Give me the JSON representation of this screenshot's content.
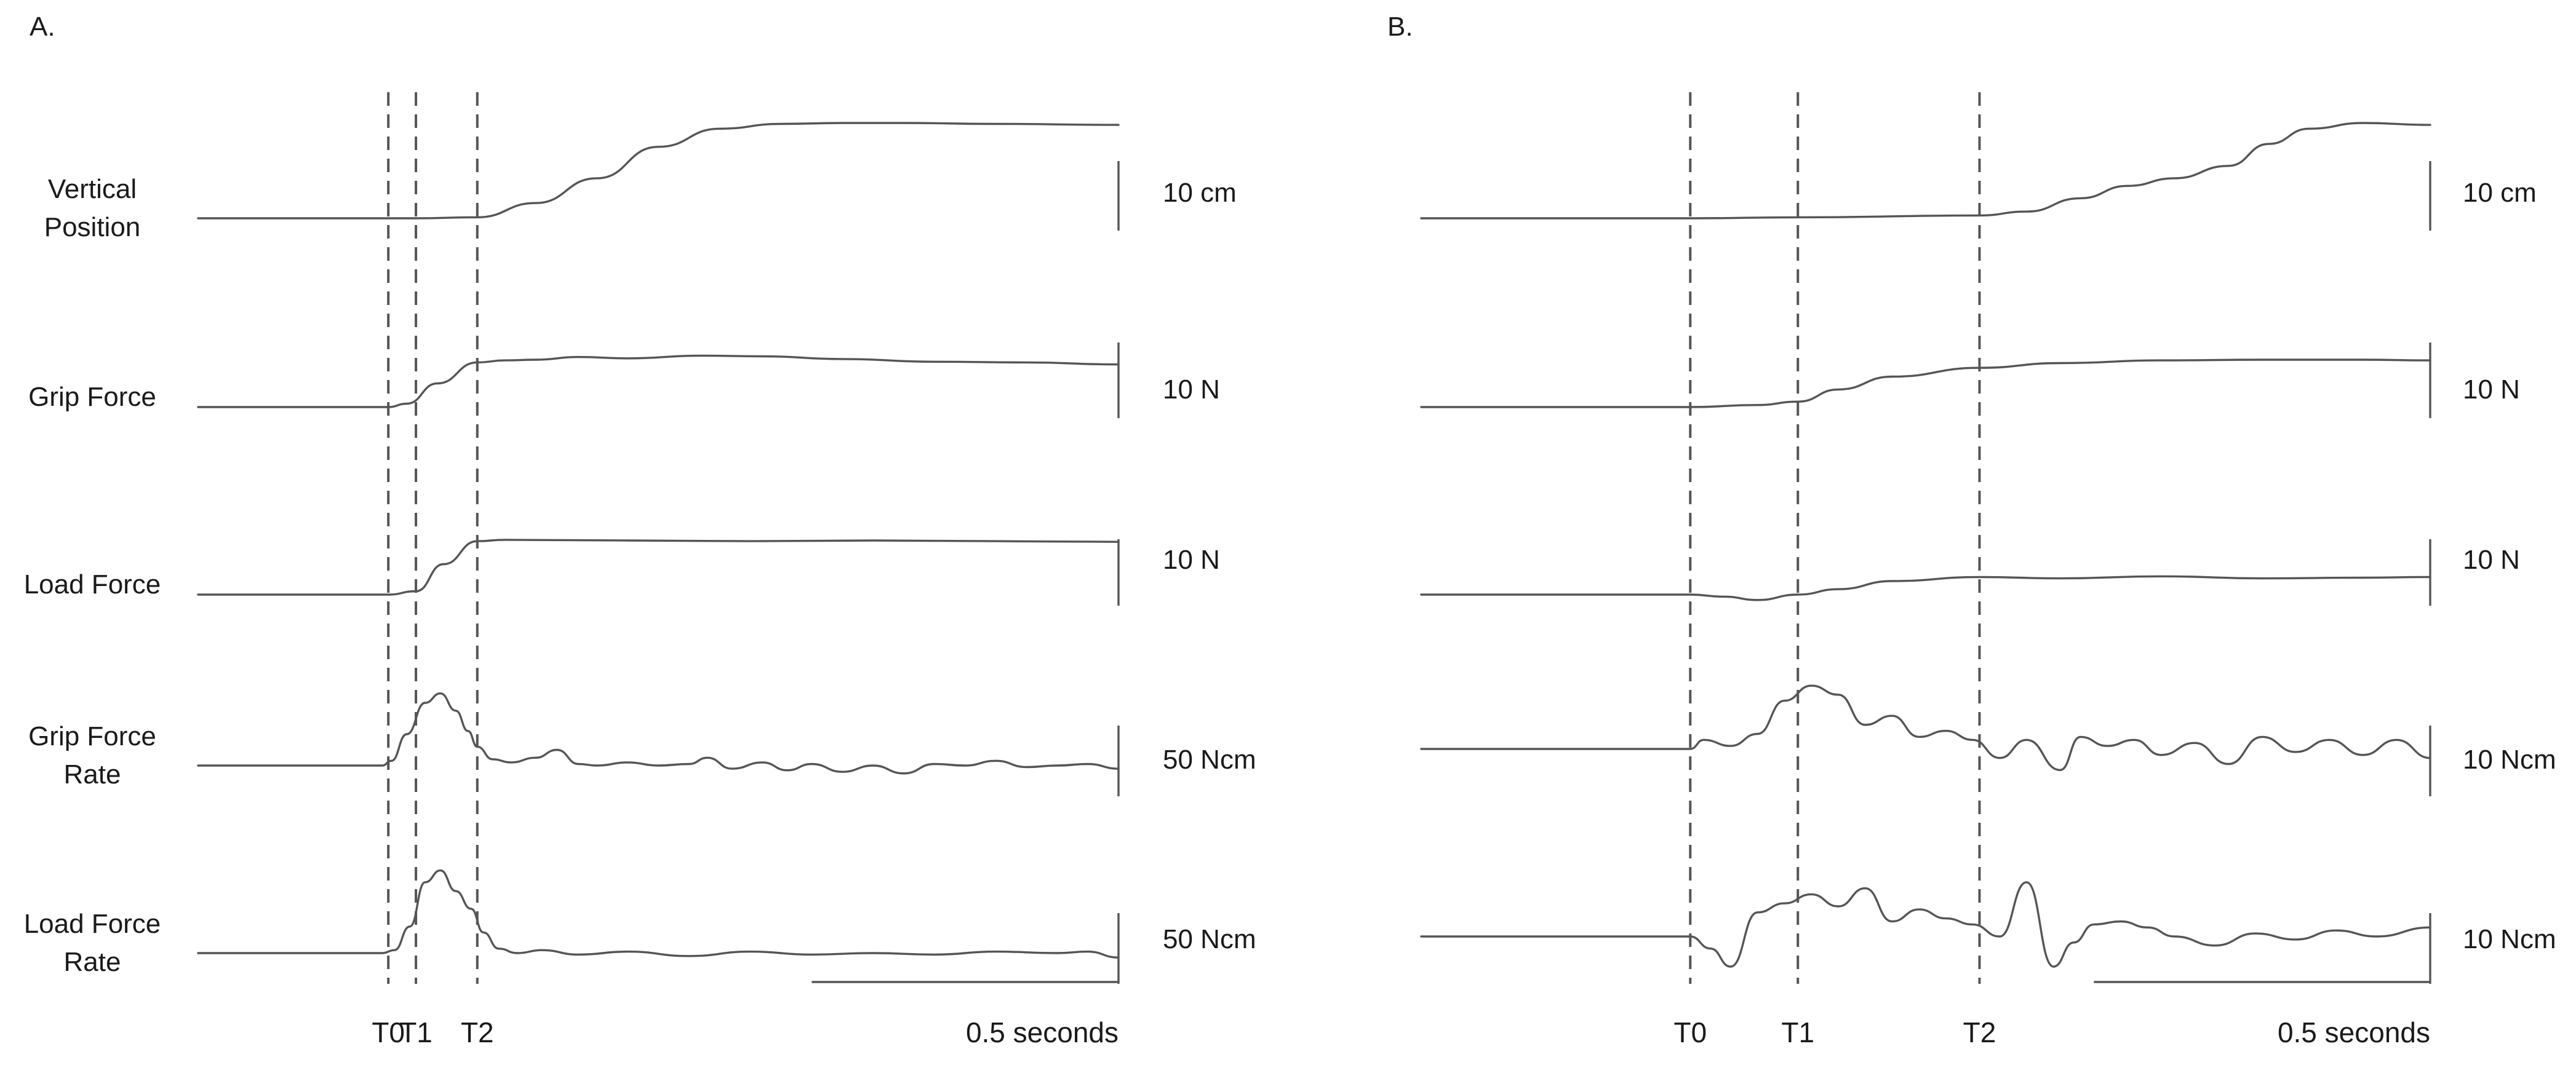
{
  "chart_data": [
    {
      "type": "line",
      "panel_label": "A.",
      "x_unit": "s",
      "xlim": [
        0,
        1.5
      ],
      "time_scale_bar": {
        "value": 0.5,
        "label": "0.5 seconds"
      },
      "markers": [
        {
          "label": "T0",
          "x": 0.31
        },
        {
          "label": "T1",
          "x": 0.355
        },
        {
          "label": "T2",
          "x": 0.455
        }
      ],
      "series": [
        {
          "name": "Vertical Position",
          "row_label": [
            "Vertical",
            "Position"
          ],
          "scale_bar": {
            "value": 10,
            "label": "10 cm"
          },
          "x": [
            0,
            0.31,
            0.355,
            0.455,
            0.55,
            0.65,
            0.75,
            0.85,
            0.95,
            1.05,
            1.15,
            1.3,
            1.5
          ],
          "values": [
            0,
            0,
            0,
            0.1,
            1.6,
            4.2,
            7.5,
            9.4,
            9.9,
            10,
            10,
            9.9,
            9.8
          ]
        },
        {
          "name": "Grip Force",
          "row_label": [
            "Grip Force"
          ],
          "scale_bar": {
            "value": 10,
            "label": "10 N"
          },
          "x": [
            0,
            0.31,
            0.34,
            0.39,
            0.455,
            0.5,
            0.55,
            0.62,
            0.7,
            0.82,
            0.92,
            1.05,
            1.2,
            1.35,
            1.5
          ],
          "values": [
            0,
            0,
            0.5,
            3.5,
            6.6,
            6.9,
            7,
            7.4,
            7.2,
            7.6,
            7.5,
            7.1,
            6.7,
            6.6,
            6.3
          ]
        },
        {
          "name": "Load Force",
          "row_label": [
            "Load Force"
          ],
          "scale_bar": {
            "value": 10,
            "label": "10 N"
          },
          "x": [
            0,
            0.31,
            0.355,
            0.4,
            0.455,
            0.5,
            0.7,
            0.9,
            1.1,
            1.3,
            1.5
          ],
          "values": [
            0,
            0,
            0.5,
            4.5,
            7.9,
            8.1,
            8,
            7.9,
            8,
            7.9,
            7.8
          ]
        },
        {
          "name": "Grip Force Rate",
          "row_label": [
            "Grip Force",
            "Rate"
          ],
          "scale_bar": {
            "value": 50,
            "label": "50 Ncm"
          },
          "x": [
            0,
            0.3,
            0.315,
            0.34,
            0.37,
            0.395,
            0.42,
            0.44,
            0.455,
            0.48,
            0.51,
            0.55,
            0.585,
            0.62,
            0.65,
            0.7,
            0.75,
            0.8,
            0.83,
            0.87,
            0.92,
            0.96,
            1.0,
            1.05,
            1.1,
            1.15,
            1.2,
            1.25,
            1.3,
            1.35,
            1.4,
            1.45,
            1.5
          ],
          "values": [
            0,
            0,
            3,
            20,
            40,
            46,
            35,
            22,
            12,
            4,
            2,
            5,
            10,
            1,
            0,
            2,
            0,
            1,
            5,
            -2,
            2,
            -3,
            1,
            -4,
            0,
            -5,
            1,
            0,
            3,
            -1,
            0,
            1,
            -2
          ]
        },
        {
          "name": "Load Force Rate",
          "row_label": [
            "Load Force",
            "Rate"
          ],
          "scale_bar": {
            "value": 50,
            "label": "50 Ncm"
          },
          "x": [
            0,
            0.3,
            0.32,
            0.345,
            0.37,
            0.395,
            0.42,
            0.445,
            0.465,
            0.49,
            0.52,
            0.56,
            0.62,
            0.7,
            0.8,
            0.9,
            1.0,
            1.1,
            1.2,
            1.3,
            1.4,
            1.45,
            1.5
          ],
          "values": [
            0,
            0,
            2,
            18,
            48,
            56,
            42,
            30,
            14,
            3,
            0,
            2,
            -1,
            1,
            -2,
            1,
            -1,
            0,
            -1,
            1,
            0,
            1,
            -3
          ]
        }
      ]
    },
    {
      "type": "line",
      "panel_label": "B.",
      "x_unit": "s",
      "xlim": [
        0,
        1.5
      ],
      "time_scale_bar": {
        "value": 0.5,
        "label": "0.5 seconds"
      },
      "markers": [
        {
          "label": "T0",
          "x": 0.4
        },
        {
          "label": "T1",
          "x": 0.56
        },
        {
          "label": "T2",
          "x": 0.83
        }
      ],
      "series": [
        {
          "name": "Vertical Position",
          "row_label": [],
          "scale_bar": {
            "value": 10,
            "label": "10 cm"
          },
          "x": [
            0,
            0.4,
            0.56,
            0.83,
            0.9,
            0.98,
            1.05,
            1.12,
            1.2,
            1.26,
            1.32,
            1.4,
            1.5
          ],
          "values": [
            0,
            0,
            0.1,
            0.3,
            0.7,
            2.1,
            3.4,
            4.2,
            5.5,
            7.8,
            9.4,
            10,
            9.8
          ]
        },
        {
          "name": "Grip Force",
          "row_label": [],
          "scale_bar": {
            "value": 10,
            "label": "10 N"
          },
          "x": [
            0,
            0.4,
            0.5,
            0.56,
            0.62,
            0.7,
            0.83,
            0.95,
            1.1,
            1.25,
            1.4,
            1.5
          ],
          "values": [
            0,
            0,
            0.3,
            0.8,
            2.6,
            4.5,
            5.8,
            6.5,
            6.9,
            7,
            7,
            6.9
          ]
        },
        {
          "name": "Load Force",
          "row_label": [],
          "scale_bar": {
            "value": 10,
            "label": "10 N"
          },
          "x": [
            0,
            0.4,
            0.45,
            0.5,
            0.56,
            0.62,
            0.7,
            0.83,
            0.95,
            1.1,
            1.25,
            1.4,
            1.5
          ],
          "values": [
            0,
            0,
            -0.3,
            -0.8,
            0,
            0.8,
            2,
            2.6,
            2.4,
            2.7,
            2.4,
            2.5,
            2.6
          ]
        },
        {
          "name": "Grip Force Rate",
          "row_label": [],
          "scale_bar": {
            "value": 10,
            "label": "10 Ncm"
          },
          "x": [
            0,
            0.4,
            0.42,
            0.46,
            0.5,
            0.54,
            0.58,
            0.62,
            0.66,
            0.7,
            0.74,
            0.78,
            0.82,
            0.86,
            0.9,
            0.95,
            0.98,
            1.02,
            1.06,
            1.1,
            1.15,
            1.2,
            1.25,
            1.3,
            1.35,
            1.4,
            1.45,
            1.5
          ],
          "values": [
            0,
            0,
            3,
            1,
            5,
            16,
            21,
            18,
            8,
            11,
            4,
            6,
            3,
            -3,
            3,
            -7,
            4,
            1,
            3,
            -2,
            2,
            -5,
            4,
            -1,
            3,
            -2,
            3,
            -3
          ]
        },
        {
          "name": "Load Force Rate",
          "row_label": [],
          "scale_bar": {
            "value": 10,
            "label": "10 Ncm"
          },
          "x": [
            0,
            0.4,
            0.43,
            0.46,
            0.5,
            0.54,
            0.58,
            0.62,
            0.66,
            0.7,
            0.74,
            0.78,
            0.82,
            0.86,
            0.9,
            0.94,
            0.97,
            1.0,
            1.04,
            1.08,
            1.12,
            1.18,
            1.24,
            1.3,
            1.36,
            1.42,
            1.5
          ],
          "values": [
            0,
            0,
            -4,
            -10,
            8,
            11,
            14,
            10,
            16,
            5,
            9,
            6,
            4,
            0,
            18,
            -10,
            -2,
            4,
            5,
            3,
            0,
            -3,
            1,
            -1,
            2,
            0,
            3
          ]
        }
      ]
    }
  ]
}
